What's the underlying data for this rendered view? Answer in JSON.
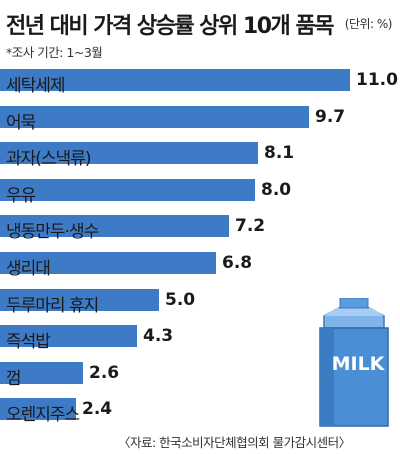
{
  "header": {
    "title": "전년 대비 가격 상승률 상위 10개 품목",
    "unit": "(단위: %)",
    "period": "*조사 기간: 1~3월"
  },
  "footer": {
    "source": "〈자료: 한국소비자단체협의회 물가감시센터〉"
  },
  "illustration": {
    "carton_label": "MILK"
  },
  "colors": {
    "bar": "#3d7bc6",
    "carton": "#4a8fd6"
  },
  "chart_data": {
    "type": "bar",
    "orientation": "horizontal",
    "title": "전년 대비 가격 상승률 상위 10개 품목",
    "unit": "%",
    "categories": [
      "세탁세제",
      "어묵",
      "과자(스낵류)",
      "우유",
      "냉동만두·생수",
      "생리대",
      "두루마리 휴지",
      "즉석밥",
      "껌",
      "오렌지주스"
    ],
    "values": [
      11.0,
      9.7,
      8.1,
      8.0,
      7.2,
      6.8,
      5.0,
      4.3,
      2.6,
      2.4
    ],
    "value_labels": [
      "11.0",
      "9.7",
      "8.1",
      "8.0",
      "7.2",
      "6.8",
      "5.0",
      "4.3",
      "2.6",
      "2.4"
    ],
    "xlim": [
      0,
      11.0
    ],
    "grid": false,
    "legend": "none"
  }
}
